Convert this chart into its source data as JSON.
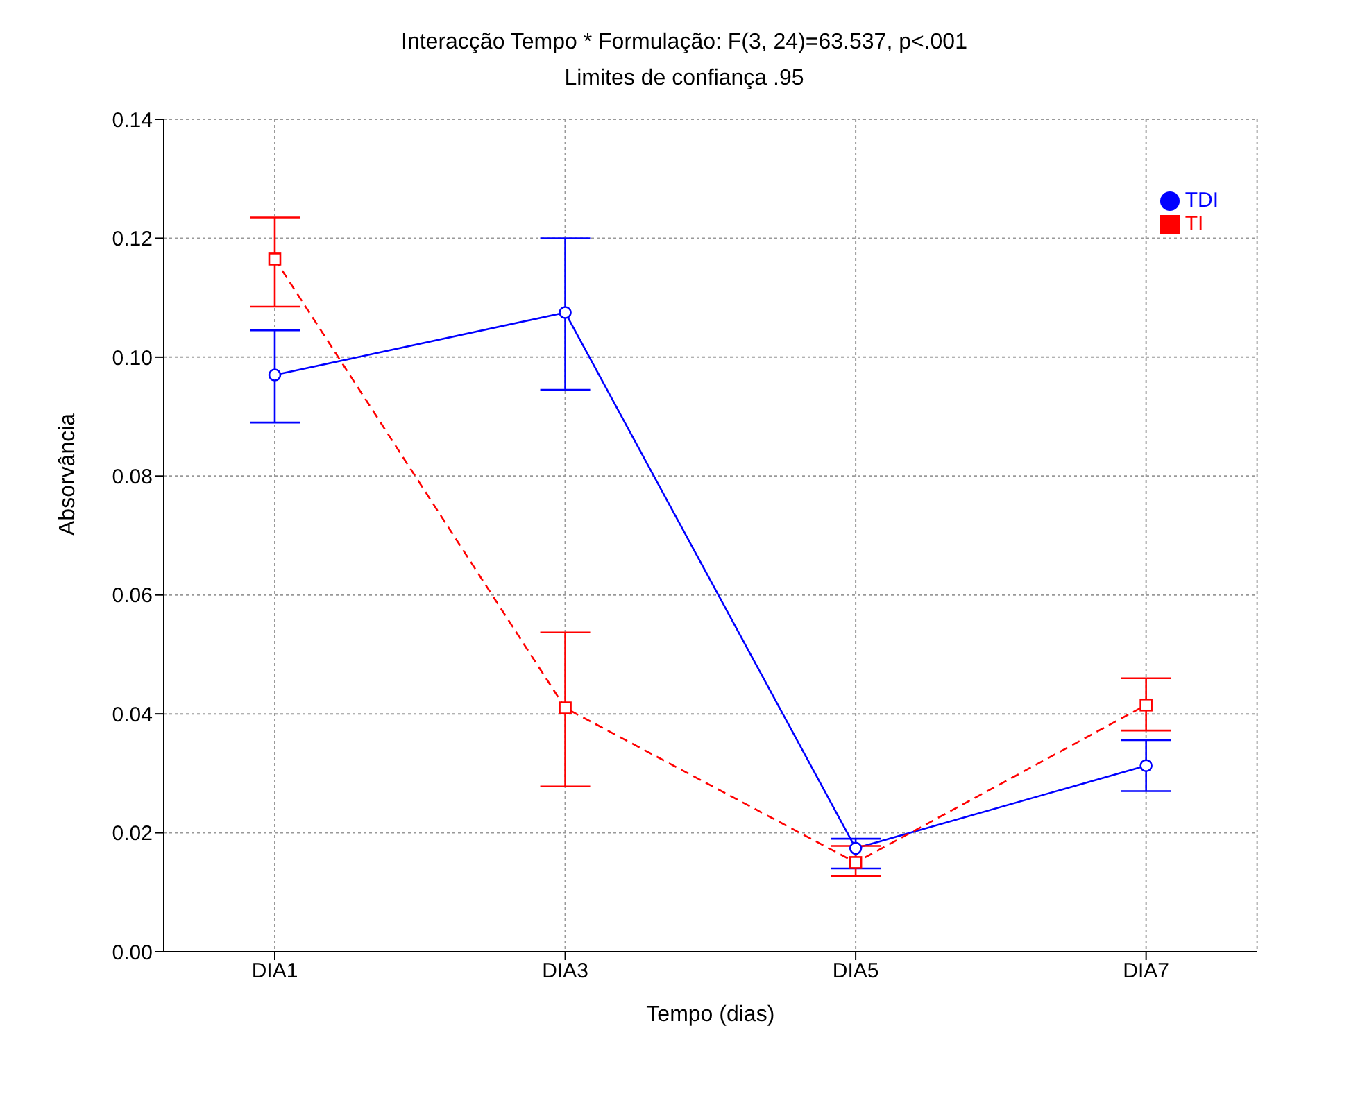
{
  "chart_data": {
    "type": "line",
    "title": "Interacção Tempo * Formulação: F(3, 24)=63.537, p<.001",
    "subtitle": "Limites de confiança .95",
    "xlabel": "Tempo (dias)",
    "ylabel": "Absorvância",
    "categories": [
      "DIA1",
      "DIA3",
      "DIA5",
      "DIA7"
    ],
    "series": [
      {
        "name": "TDI",
        "color": "#0000ff",
        "marker": "circle",
        "line_style": "solid",
        "values": [
          0.097,
          0.1075,
          0.0174,
          0.0313
        ],
        "errors": [
          [
            0.089,
            0.1045
          ],
          [
            0.0945,
            0.12
          ],
          [
            0.014,
            0.019
          ],
          [
            0.027,
            0.0356
          ]
        ]
      },
      {
        "name": "TI",
        "color": "#ff0000",
        "marker": "square",
        "line_style": "dashed",
        "values": [
          0.1165,
          0.041,
          0.015,
          0.0415
        ],
        "errors": [
          [
            0.1085,
            0.1235
          ],
          [
            0.0278,
            0.0537
          ],
          [
            0.0127,
            0.0178
          ],
          [
            0.0372,
            0.046
          ]
        ]
      }
    ],
    "ylim": [
      0,
      0.14
    ],
    "yticks": [
      {
        "value": 0,
        "label": "0.00"
      },
      {
        "value": 0.02,
        "label": "0.02"
      },
      {
        "value": 0.04,
        "label": "0.04"
      },
      {
        "value": 0.06,
        "label": "0.06"
      },
      {
        "value": 0.08,
        "label": "0.08"
      },
      {
        "value": 0.1,
        "label": "0.10"
      },
      {
        "value": 0.12,
        "label": "0.12"
      },
      {
        "value": 0.14,
        "label": "0.14"
      }
    ],
    "grid": true,
    "legend": "top right"
  }
}
